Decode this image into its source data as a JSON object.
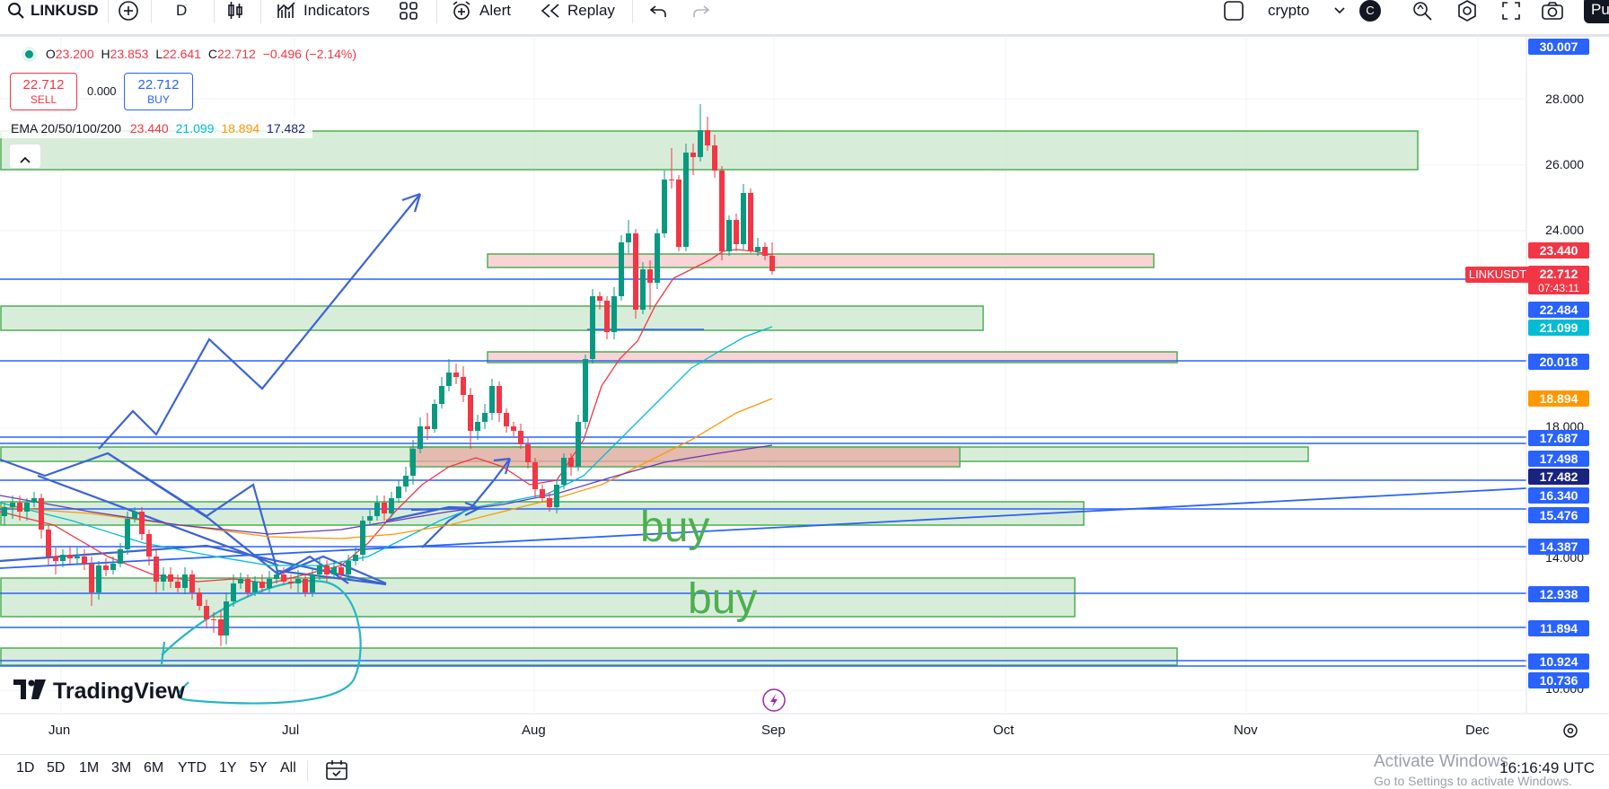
{
  "toolbar": {
    "symbol": "LINKUSD",
    "interval": "D",
    "indicators_label": "Indicators",
    "alert_label": "Alert",
    "replay_label": "Replay",
    "layout_name": "crypto",
    "avatar_letter": "C",
    "publish_label": "Pu"
  },
  "legend": {
    "o_label": "O",
    "o_val": "23.200",
    "h_label": "H",
    "h_val": "23.853",
    "l_label": "L",
    "l_val": "22.641",
    "c_label": "C",
    "c_val": "22.712",
    "change": "−0.496 (−2.14%)",
    "sell_price": "22.712",
    "sell_label": "SELL",
    "spread": "0.000",
    "buy_price": "22.712",
    "buy_label": "BUY",
    "ema_label": "EMA 20/50/100/200",
    "ema20": "23.440",
    "ema50": "21.099",
    "ema100": "18.894",
    "ema200": "17.482"
  },
  "price_labels": [
    {
      "text": "30.007",
      "color": "#2962ff"
    },
    {
      "text": "23.440",
      "color": "#f23645"
    },
    {
      "text": "22.712",
      "color": "#f23645"
    },
    {
      "text": "07:43:11",
      "color": "#f23645"
    },
    {
      "text": "22.484",
      "color": "#2962ff"
    },
    {
      "text": "21.099",
      "color": "#00bcd4"
    },
    {
      "text": "20.018",
      "color": "#2962ff"
    },
    {
      "text": "18.894",
      "color": "#ff9800"
    },
    {
      "text": "17.687",
      "color": "#2962ff"
    },
    {
      "text": "17.498",
      "color": "#2962ff"
    },
    {
      "text": "17.482",
      "color": "#1a237e"
    },
    {
      "text": "16.340",
      "color": "#2962ff"
    },
    {
      "text": "15.476",
      "color": "#2962ff"
    },
    {
      "text": "14.387",
      "color": "#2962ff"
    },
    {
      "text": "12.938",
      "color": "#2962ff"
    },
    {
      "text": "11.894",
      "color": "#2962ff"
    },
    {
      "text": "10.924",
      "color": "#2962ff"
    },
    {
      "text": "10.736",
      "color": "#2962ff"
    }
  ],
  "symbol_tag": "LINKUSDT",
  "y_ticks": [
    "28.000",
    "26.000",
    "24.000",
    "18.000",
    "14.000",
    "10.000"
  ],
  "x_ticks": [
    "Jun",
    "Jul",
    "Aug",
    "Sep",
    "Oct",
    "Nov",
    "Dec"
  ],
  "annotations": {
    "buy1": "buy",
    "buy2": "buy"
  },
  "brand": "TradingView",
  "ranges": [
    "1D",
    "5D",
    "1M",
    "3M",
    "6M",
    "YTD",
    "1Y",
    "5Y",
    "All"
  ],
  "clock": "16:16:49 UTC",
  "watermark": {
    "line1": "Activate Windows",
    "line2": "Go to Settings to activate Windows."
  },
  "colors": {
    "up": "#089981",
    "down": "#f23645",
    "zone_green": "#c8e6c9",
    "zone_red": "#f8c9cc",
    "line_blue": "#2962ff",
    "drawing": "#3b63d6"
  }
}
